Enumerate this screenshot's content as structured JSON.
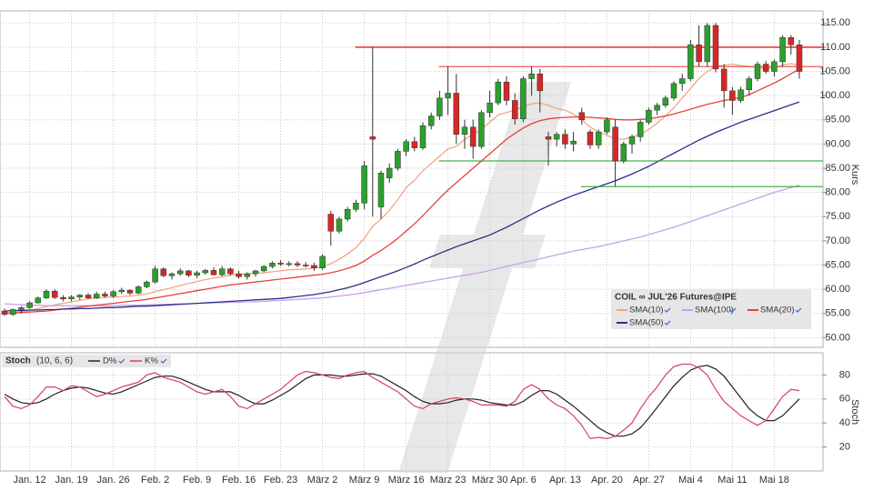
{
  "chart_data": [
    {
      "type": "candlestick",
      "legend_title": "COIL ∞ JUL'26 Futures@IPE",
      "y_label": "Kurs",
      "categories": [
        null,
        null,
        null,
        "Jan. 12",
        null,
        null,
        null,
        null,
        "Jan. 19",
        null,
        null,
        null,
        null,
        "Jan. 26",
        null,
        null,
        null,
        null,
        "Feb. 2",
        null,
        null,
        null,
        null,
        "Feb. 9",
        null,
        null,
        null,
        null,
        "Feb. 16",
        null,
        null,
        null,
        null,
        "Feb. 23",
        null,
        null,
        null,
        null,
        "März 2",
        null,
        null,
        null,
        null,
        "März 9",
        null,
        null,
        null,
        null,
        "März 16",
        null,
        null,
        null,
        null,
        "März 23",
        null,
        null,
        null,
        null,
        "März 30",
        null,
        null,
        null,
        "Apr. 6",
        null,
        null,
        null,
        null,
        "Apr. 13",
        null,
        null,
        null,
        null,
        "Apr. 20",
        null,
        null,
        null,
        null,
        "Apr. 27",
        null,
        null,
        null,
        null,
        "Mai 4",
        null,
        null,
        null,
        null,
        "Mai 11",
        null,
        null,
        null,
        null,
        "Mai 18",
        null,
        null,
        null
      ],
      "open": [
        55.5,
        54.8,
        55.8,
        56.2,
        57.2,
        58.2,
        59.6,
        58.3,
        58,
        58.4,
        58.8,
        58.2,
        59,
        58.6,
        59.5,
        59.8,
        59.2,
        60.5,
        61.5,
        64.2,
        62.8,
        63.2,
        63.8,
        62.9,
        63.4,
        63.9,
        63,
        64.2,
        63.2,
        62.6,
        63.2,
        63.8,
        64.7,
        65.4,
        65.2,
        65.3,
        65,
        64.9,
        64.4,
        75.5,
        72,
        74.5,
        76.5,
        77.8,
        91.5,
        77,
        83,
        85,
        88.5,
        90.5,
        89.2,
        93.8,
        95.8,
        99.5,
        100.5,
        92,
        93.5,
        89.5,
        96.5,
        98.5,
        102.8,
        99,
        95.2,
        103.5,
        104.5,
        91.5,
        91,
        92,
        90,
        96.5,
        92.5,
        89.8,
        92.5,
        93.5,
        86.5,
        90,
        91.5,
        94.5,
        97,
        98,
        99.5,
        102.5,
        103.5,
        110.5,
        107,
        114.5,
        105.5,
        101,
        99,
        101.2,
        103.5,
        106.5,
        105,
        107,
        112,
        110.5
      ],
      "high": [
        56,
        56,
        56.5,
        57.5,
        58.5,
        60,
        60,
        58.8,
        58.8,
        59,
        59.2,
        59.5,
        59.5,
        59.8,
        60.3,
        60,
        60.8,
        61.8,
        64.8,
        64.5,
        63.5,
        64.3,
        64,
        63.8,
        64.2,
        64.5,
        64.8,
        64.5,
        63.8,
        63.5,
        64,
        65,
        65.8,
        66,
        65.8,
        65.8,
        65.6,
        65.5,
        67.2,
        76.2,
        75,
        77,
        78.5,
        86.5,
        110,
        84.5,
        86,
        89,
        91,
        91.5,
        94.5,
        96.5,
        101,
        106,
        104.5,
        95,
        95,
        97,
        101,
        103.5,
        104,
        100.5,
        104,
        106,
        105.5,
        92.5,
        92.5,
        93,
        92.5,
        97.5,
        93,
        93,
        95.5,
        95,
        90.5,
        92,
        95,
        97.5,
        98.5,
        100,
        103,
        104.5,
        111.5,
        114.5,
        115,
        115,
        106.5,
        101.8,
        101.8,
        104,
        107,
        107.2,
        107.5,
        112.5,
        112.5,
        111.5
      ],
      "low": [
        54.5,
        54.5,
        55,
        56,
        57,
        58,
        58,
        57.5,
        57.5,
        57.8,
        58,
        58,
        58.3,
        58.2,
        59,
        58.8,
        59,
        60.2,
        61.2,
        62.5,
        62,
        62.8,
        62.5,
        62.3,
        63,
        62.8,
        62.7,
        62.8,
        62.2,
        62,
        62.6,
        63.5,
        64.3,
        64.8,
        64.7,
        64.6,
        64.5,
        63.8,
        64,
        69,
        71.5,
        74,
        76,
        76.5,
        75,
        74.5,
        82,
        84.5,
        87.5,
        88.5,
        88.8,
        93,
        95,
        96,
        90,
        89,
        87,
        89,
        95.5,
        98,
        98,
        94,
        94.5,
        100,
        96.5,
        85.5,
        89.5,
        89,
        88.5,
        94,
        89,
        89,
        92,
        81.2,
        86,
        88,
        90.5,
        94,
        96,
        97.5,
        99,
        101,
        103,
        106,
        106,
        104.8,
        97.5,
        96,
        98.5,
        100,
        103,
        104.5,
        104,
        106,
        108.5,
        103.5
      ],
      "close": [
        54.8,
        55.8,
        56.2,
        57.2,
        58.2,
        59.6,
        58.3,
        58,
        58.4,
        58.8,
        58.2,
        59,
        58.6,
        59.5,
        59.8,
        59.2,
        60.5,
        61.5,
        64.2,
        62.8,
        63.2,
        63.8,
        62.9,
        63.4,
        63.9,
        63,
        64.2,
        63.2,
        62.6,
        63.2,
        63.8,
        64.7,
        65.4,
        65.2,
        65.3,
        65,
        64.9,
        64.4,
        66.8,
        72,
        74.5,
        76.5,
        77.8,
        85.5,
        91,
        84,
        85,
        88.5,
        90.5,
        89.2,
        93.8,
        95.8,
        99.5,
        100.5,
        92,
        93.5,
        89.5,
        96.5,
        98.5,
        102.8,
        99,
        95.2,
        103.5,
        104.5,
        101,
        91,
        92,
        90,
        90.6,
        95,
        89.8,
        92.5,
        95,
        86.5,
        90,
        91.5,
        94.5,
        97,
        98,
        99.5,
        102.5,
        103.5,
        110.5,
        107,
        114.5,
        105.5,
        101,
        99,
        101.2,
        103.5,
        106.5,
        105,
        107,
        112,
        110.5,
        105
      ],
      "up_color": "#2ca02c",
      "down_color": "#d62728",
      "series": [
        {
          "name": "SMA(10)",
          "color": "#f4a582",
          "values": [
            55,
            55.2,
            55.4,
            55.6,
            56,
            56.4,
            56.8,
            57.1,
            57.4,
            57.7,
            58,
            58.2,
            58.3,
            58.4,
            58.5,
            58.6,
            58.8,
            59,
            59.5,
            59.9,
            60.3,
            60.8,
            61.2,
            61.6,
            62,
            62.3,
            62.6,
            62.9,
            63.1,
            63.2,
            63.3,
            63.4,
            63.6,
            63.8,
            64,
            64.1,
            64.2,
            64.4,
            64.6,
            65.3,
            66.2,
            67.3,
            68.6,
            70.5,
            73,
            74.5,
            76.3,
            78.5,
            81,
            82.5,
            84.5,
            86,
            87.5,
            89,
            89.5,
            91,
            92,
            93,
            94.5,
            96,
            96.5,
            97,
            97.7,
            98.3,
            98.5,
            98,
            97.3,
            97,
            96.2,
            95,
            93.5,
            92.5,
            91.8,
            91,
            91,
            91.5,
            92,
            93,
            94.3,
            95.8,
            97.5,
            99.5,
            101.5,
            103.5,
            105,
            106,
            106.3,
            106.5,
            106.2,
            106,
            105.8,
            105.5,
            105.8,
            106.3,
            106.6,
            106.3
          ]
        },
        {
          "name": "SMA(100)",
          "color": "#c9a0e8",
          "values": [
            57,
            56.9,
            56.8,
            56.7,
            56.7,
            56.6,
            56.6,
            56.6,
            56.6,
            56.6,
            56.6,
            56.6,
            56.6,
            56.6,
            56.7,
            56.7,
            56.7,
            56.8,
            56.8,
            56.9,
            56.9,
            57,
            57,
            57.1,
            57.1,
            57.2,
            57.2,
            57.3,
            57.3,
            57.4,
            57.4,
            57.5,
            57.6,
            57.7,
            57.8,
            57.9,
            58,
            58.1,
            58.2,
            58.4,
            58.6,
            58.8,
            59,
            59.3,
            59.6,
            59.9,
            60.2,
            60.5,
            60.8,
            61.1,
            61.4,
            61.7,
            62,
            62.3,
            62.6,
            62.9,
            63.2,
            63.5,
            63.9,
            64.3,
            64.7,
            65.1,
            65.5,
            65.9,
            66.3,
            66.7,
            67.1,
            67.5,
            67.9,
            68.2,
            68.5,
            68.8,
            69.2,
            69.6,
            70,
            70.4,
            70.8,
            71.3,
            71.8,
            72.3,
            72.8,
            73.4,
            74,
            74.6,
            75.2,
            75.8,
            76.4,
            77,
            77.6,
            78.2,
            78.8,
            79.4,
            80,
            80.5,
            81,
            81.5
          ]
        },
        {
          "name": "SMA(20)",
          "color": "#e8413c",
          "values": [
            55,
            55.1,
            55.2,
            55.3,
            55.4,
            55.5,
            55.7,
            55.9,
            56.1,
            56.3,
            56.5,
            56.7,
            56.9,
            57.1,
            57.3,
            57.5,
            57.7,
            57.9,
            58.2,
            58.5,
            58.8,
            59.1,
            59.4,
            59.7,
            60,
            60.3,
            60.6,
            60.9,
            61.1,
            61.3,
            61.5,
            61.7,
            61.9,
            62.1,
            62.3,
            62.5,
            62.7,
            62.9,
            63.1,
            63.4,
            63.8,
            64.3,
            64.9,
            65.8,
            67,
            68,
            69.2,
            70.5,
            72,
            73.5,
            75.2,
            77,
            78.8,
            80.5,
            82,
            83.5,
            85,
            86.5,
            88,
            89.5,
            91,
            92.2,
            93.3,
            94.2,
            94.8,
            95.2,
            95.4,
            95.5,
            95.6,
            95.6,
            95.5,
            95.4,
            95.3,
            95.1,
            95,
            95,
            95.1,
            95.2,
            95.5,
            95.8,
            96.2,
            96.7,
            97.2,
            97.7,
            98.2,
            98.6,
            99,
            99.3,
            99.6,
            100.2,
            101,
            101.8,
            102.6,
            103.5,
            104.5,
            105.5
          ]
        },
        {
          "name": "SMA(50)",
          "color": "#2c2f8a",
          "values": [
            55.5,
            55.6,
            55.6,
            55.7,
            55.7,
            55.8,
            55.8,
            55.9,
            55.9,
            56,
            56,
            56.1,
            56.2,
            56.2,
            56.3,
            56.4,
            56.5,
            56.5,
            56.6,
            56.7,
            56.8,
            56.9,
            57,
            57.1,
            57.2,
            57.3,
            57.4,
            57.5,
            57.6,
            57.7,
            57.8,
            57.9,
            58,
            58.1,
            58.3,
            58.5,
            58.7,
            58.9,
            59.2,
            59.5,
            59.9,
            60.3,
            60.8,
            61.4,
            62,
            62.6,
            63.2,
            63.8,
            64.5,
            65.2,
            66,
            66.7,
            67.4,
            68.1,
            68.8,
            69.4,
            70,
            70.6,
            71.2,
            72,
            72.8,
            73.7,
            74.6,
            75.5,
            76.4,
            77.2,
            78,
            78.7,
            79.4,
            80,
            80.6,
            81.2,
            81.8,
            82.4,
            83.1,
            83.8,
            84.6,
            85.4,
            86.3,
            87.2,
            88.1,
            89,
            89.9,
            90.8,
            91.6,
            92.4,
            93.1,
            93.8,
            94.5,
            95.1,
            95.7,
            96.3,
            96.9,
            97.5,
            98.1,
            98.7
          ]
        }
      ],
      "levels": [
        {
          "value": 110,
          "color": "#e8413c",
          "start": 43
        },
        {
          "value": 106,
          "color": "#e8413c",
          "start": 53
        },
        {
          "value": 86.5,
          "color": "#2ca02c",
          "start": 53
        },
        {
          "value": 81.2,
          "color": "#2ca02c",
          "start": 70
        }
      ],
      "ylim": [
        48,
        117.5
      ],
      "yticks": [
        {
          "value": 50,
          "label": "50.00"
        },
        {
          "value": 55,
          "label": "55.00"
        },
        {
          "value": 60,
          "label": "60.00"
        },
        {
          "value": 65,
          "label": "65.00"
        },
        {
          "value": 70,
          "label": "70.00"
        },
        {
          "value": 75,
          "label": "75.00"
        },
        {
          "value": 80,
          "label": "80.00"
        },
        {
          "value": 85,
          "label": "85.00"
        },
        {
          "value": 90,
          "label": "90.00"
        },
        {
          "value": 95,
          "label": "95.00"
        },
        {
          "value": 100,
          "label": "100.00"
        },
        {
          "value": 105,
          "label": "105.00"
        },
        {
          "value": 110,
          "label": "110.00"
        },
        {
          "value": 115,
          "label": "115.00"
        }
      ],
      "grid": true
    },
    {
      "type": "line",
      "title": "Stoch",
      "params": "(10, 6, 6)",
      "y_label": "Stoch",
      "series": [
        {
          "name": "D%",
          "color": "#222222",
          "values": [
            64,
            60,
            57,
            56,
            57,
            60,
            64,
            67,
            69,
            70,
            69,
            67,
            65,
            64,
            66,
            69,
            72,
            75,
            78,
            79,
            79,
            77,
            74,
            71,
            68,
            66,
            66,
            66,
            63,
            59,
            56,
            56,
            59,
            63,
            67,
            72,
            77,
            80,
            80,
            80,
            79,
            79,
            80,
            81,
            81,
            79,
            75,
            71,
            67,
            62,
            58,
            56,
            56,
            57,
            59,
            60,
            60,
            59,
            57,
            56,
            55,
            55,
            58,
            63,
            67,
            67,
            64,
            59,
            54,
            48,
            42,
            36,
            32,
            29,
            29,
            31,
            36,
            44,
            53,
            62,
            71,
            78,
            84,
            87,
            88,
            85,
            79,
            70,
            61,
            52,
            46,
            42,
            42,
            46,
            53,
            60
          ]
        },
        {
          "name": "K%",
          "color": "#d6405a",
          "values": [
            62,
            54,
            52,
            55,
            62,
            70,
            70,
            67,
            71,
            70,
            66,
            62,
            64,
            67,
            70,
            72,
            74,
            80,
            82,
            78,
            76,
            74,
            70,
            66,
            64,
            66,
            68,
            62,
            54,
            52,
            56,
            60,
            64,
            68,
            74,
            80,
            83,
            82,
            80,
            78,
            77,
            80,
            82,
            83,
            78,
            74,
            70,
            66,
            60,
            54,
            52,
            56,
            58,
            60,
            61,
            60,
            58,
            55,
            55,
            55,
            54,
            58,
            68,
            72,
            68,
            60,
            55,
            52,
            46,
            38,
            27,
            28,
            27,
            29,
            34,
            40,
            52,
            62,
            70,
            80,
            87,
            89,
            89,
            86,
            80,
            68,
            58,
            52,
            46,
            42,
            38,
            42,
            52,
            62,
            68,
            67
          ]
        }
      ],
      "ylim": [
        0,
        98.5
      ],
      "yticks": [
        20,
        40,
        60,
        80
      ],
      "grid": true
    }
  ]
}
